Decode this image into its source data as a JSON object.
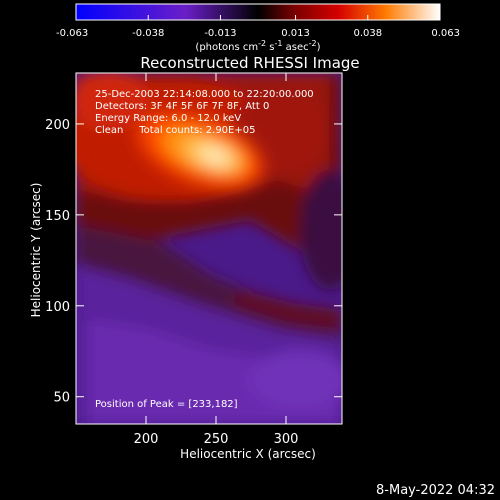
{
  "chart_data": {
    "type": "heatmap",
    "title": "Reconstructed RHESSI Image",
    "xlabel": "Heliocentric X (arcsec)",
    "ylabel": "Heliocentric Y (arcsec)",
    "xlim": [
      150,
      340
    ],
    "ylim": [
      35,
      228
    ],
    "x_ticks": [
      200,
      250,
      300
    ],
    "y_ticks": [
      50,
      100,
      150,
      200
    ],
    "colorbar": {
      "range": [
        -0.063,
        0.063
      ],
      "ticks": [
        "-0.063",
        "-0.038",
        "-0.013",
        "0.013",
        "0.038",
        "0.063"
      ],
      "unit_label": {
        "prefix": "(photons cm",
        "exp1": "-2",
        "mid1": " s",
        "exp2": "-1",
        "mid2": " asec",
        "exp3": "-2",
        "suffix": ")"
      }
    },
    "peak": {
      "x": 233,
      "y": 182
    },
    "colors": {
      "background": "#000000",
      "foreground": "#ffffff"
    }
  },
  "annotations": [
    "25-Dec-2003 22:14:08.000 to 22:20:00.000",
    "Detectors: 3F 4F 5F 6F 7F 8F, Att 0",
    "Energy Range: 6.0 - 12.0 keV",
    "Clean     Total counts: 2.90E+05"
  ],
  "peak_label": "Position of Peak = [233,182]",
  "footer_timestamp": "8-May-2022 04:32"
}
